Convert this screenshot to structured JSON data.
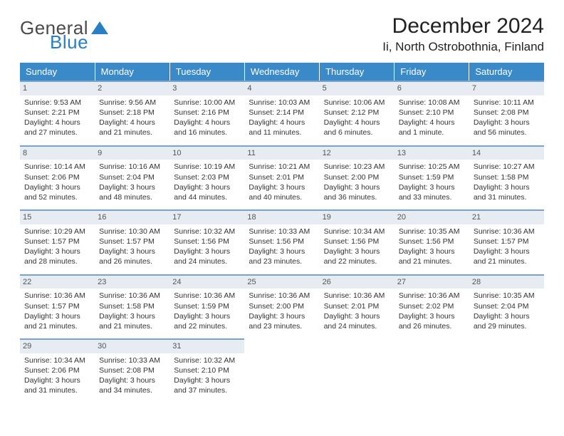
{
  "brand": {
    "word1": "General",
    "word2": "Blue",
    "tri_color": "#2a7fc4"
  },
  "title": {
    "month": "December 2024",
    "location": "Ii, North Ostrobothnia, Finland"
  },
  "colors": {
    "header_bg": "#3a8ac9",
    "row_border": "#7ba3c9",
    "daynum_bg": "#e6ecf2"
  },
  "daynames": [
    "Sunday",
    "Monday",
    "Tuesday",
    "Wednesday",
    "Thursday",
    "Friday",
    "Saturday"
  ],
  "days": [
    {
      "n": "1",
      "sr": "9:53 AM",
      "ss": "2:21 PM",
      "dl": "4 hours and 27 minutes."
    },
    {
      "n": "2",
      "sr": "9:56 AM",
      "ss": "2:18 PM",
      "dl": "4 hours and 21 minutes."
    },
    {
      "n": "3",
      "sr": "10:00 AM",
      "ss": "2:16 PM",
      "dl": "4 hours and 16 minutes."
    },
    {
      "n": "4",
      "sr": "10:03 AM",
      "ss": "2:14 PM",
      "dl": "4 hours and 11 minutes."
    },
    {
      "n": "5",
      "sr": "10:06 AM",
      "ss": "2:12 PM",
      "dl": "4 hours and 6 minutes."
    },
    {
      "n": "6",
      "sr": "10:08 AM",
      "ss": "2:10 PM",
      "dl": "4 hours and 1 minute."
    },
    {
      "n": "7",
      "sr": "10:11 AM",
      "ss": "2:08 PM",
      "dl": "3 hours and 56 minutes."
    },
    {
      "n": "8",
      "sr": "10:14 AM",
      "ss": "2:06 PM",
      "dl": "3 hours and 52 minutes."
    },
    {
      "n": "9",
      "sr": "10:16 AM",
      "ss": "2:04 PM",
      "dl": "3 hours and 48 minutes."
    },
    {
      "n": "10",
      "sr": "10:19 AM",
      "ss": "2:03 PM",
      "dl": "3 hours and 44 minutes."
    },
    {
      "n": "11",
      "sr": "10:21 AM",
      "ss": "2:01 PM",
      "dl": "3 hours and 40 minutes."
    },
    {
      "n": "12",
      "sr": "10:23 AM",
      "ss": "2:00 PM",
      "dl": "3 hours and 36 minutes."
    },
    {
      "n": "13",
      "sr": "10:25 AM",
      "ss": "1:59 PM",
      "dl": "3 hours and 33 minutes."
    },
    {
      "n": "14",
      "sr": "10:27 AM",
      "ss": "1:58 PM",
      "dl": "3 hours and 31 minutes."
    },
    {
      "n": "15",
      "sr": "10:29 AM",
      "ss": "1:57 PM",
      "dl": "3 hours and 28 minutes."
    },
    {
      "n": "16",
      "sr": "10:30 AM",
      "ss": "1:57 PM",
      "dl": "3 hours and 26 minutes."
    },
    {
      "n": "17",
      "sr": "10:32 AM",
      "ss": "1:56 PM",
      "dl": "3 hours and 24 minutes."
    },
    {
      "n": "18",
      "sr": "10:33 AM",
      "ss": "1:56 PM",
      "dl": "3 hours and 23 minutes."
    },
    {
      "n": "19",
      "sr": "10:34 AM",
      "ss": "1:56 PM",
      "dl": "3 hours and 22 minutes."
    },
    {
      "n": "20",
      "sr": "10:35 AM",
      "ss": "1:56 PM",
      "dl": "3 hours and 21 minutes."
    },
    {
      "n": "21",
      "sr": "10:36 AM",
      "ss": "1:57 PM",
      "dl": "3 hours and 21 minutes."
    },
    {
      "n": "22",
      "sr": "10:36 AM",
      "ss": "1:57 PM",
      "dl": "3 hours and 21 minutes."
    },
    {
      "n": "23",
      "sr": "10:36 AM",
      "ss": "1:58 PM",
      "dl": "3 hours and 21 minutes."
    },
    {
      "n": "24",
      "sr": "10:36 AM",
      "ss": "1:59 PM",
      "dl": "3 hours and 22 minutes."
    },
    {
      "n": "25",
      "sr": "10:36 AM",
      "ss": "2:00 PM",
      "dl": "3 hours and 23 minutes."
    },
    {
      "n": "26",
      "sr": "10:36 AM",
      "ss": "2:01 PM",
      "dl": "3 hours and 24 minutes."
    },
    {
      "n": "27",
      "sr": "10:36 AM",
      "ss": "2:02 PM",
      "dl": "3 hours and 26 minutes."
    },
    {
      "n": "28",
      "sr": "10:35 AM",
      "ss": "2:04 PM",
      "dl": "3 hours and 29 minutes."
    },
    {
      "n": "29",
      "sr": "10:34 AM",
      "ss": "2:06 PM",
      "dl": "3 hours and 31 minutes."
    },
    {
      "n": "30",
      "sr": "10:33 AM",
      "ss": "2:08 PM",
      "dl": "3 hours and 34 minutes."
    },
    {
      "n": "31",
      "sr": "10:32 AM",
      "ss": "2:10 PM",
      "dl": "3 hours and 37 minutes."
    }
  ],
  "labels": {
    "sunrise": "Sunrise:",
    "sunset": "Sunset:",
    "daylight": "Daylight:"
  }
}
